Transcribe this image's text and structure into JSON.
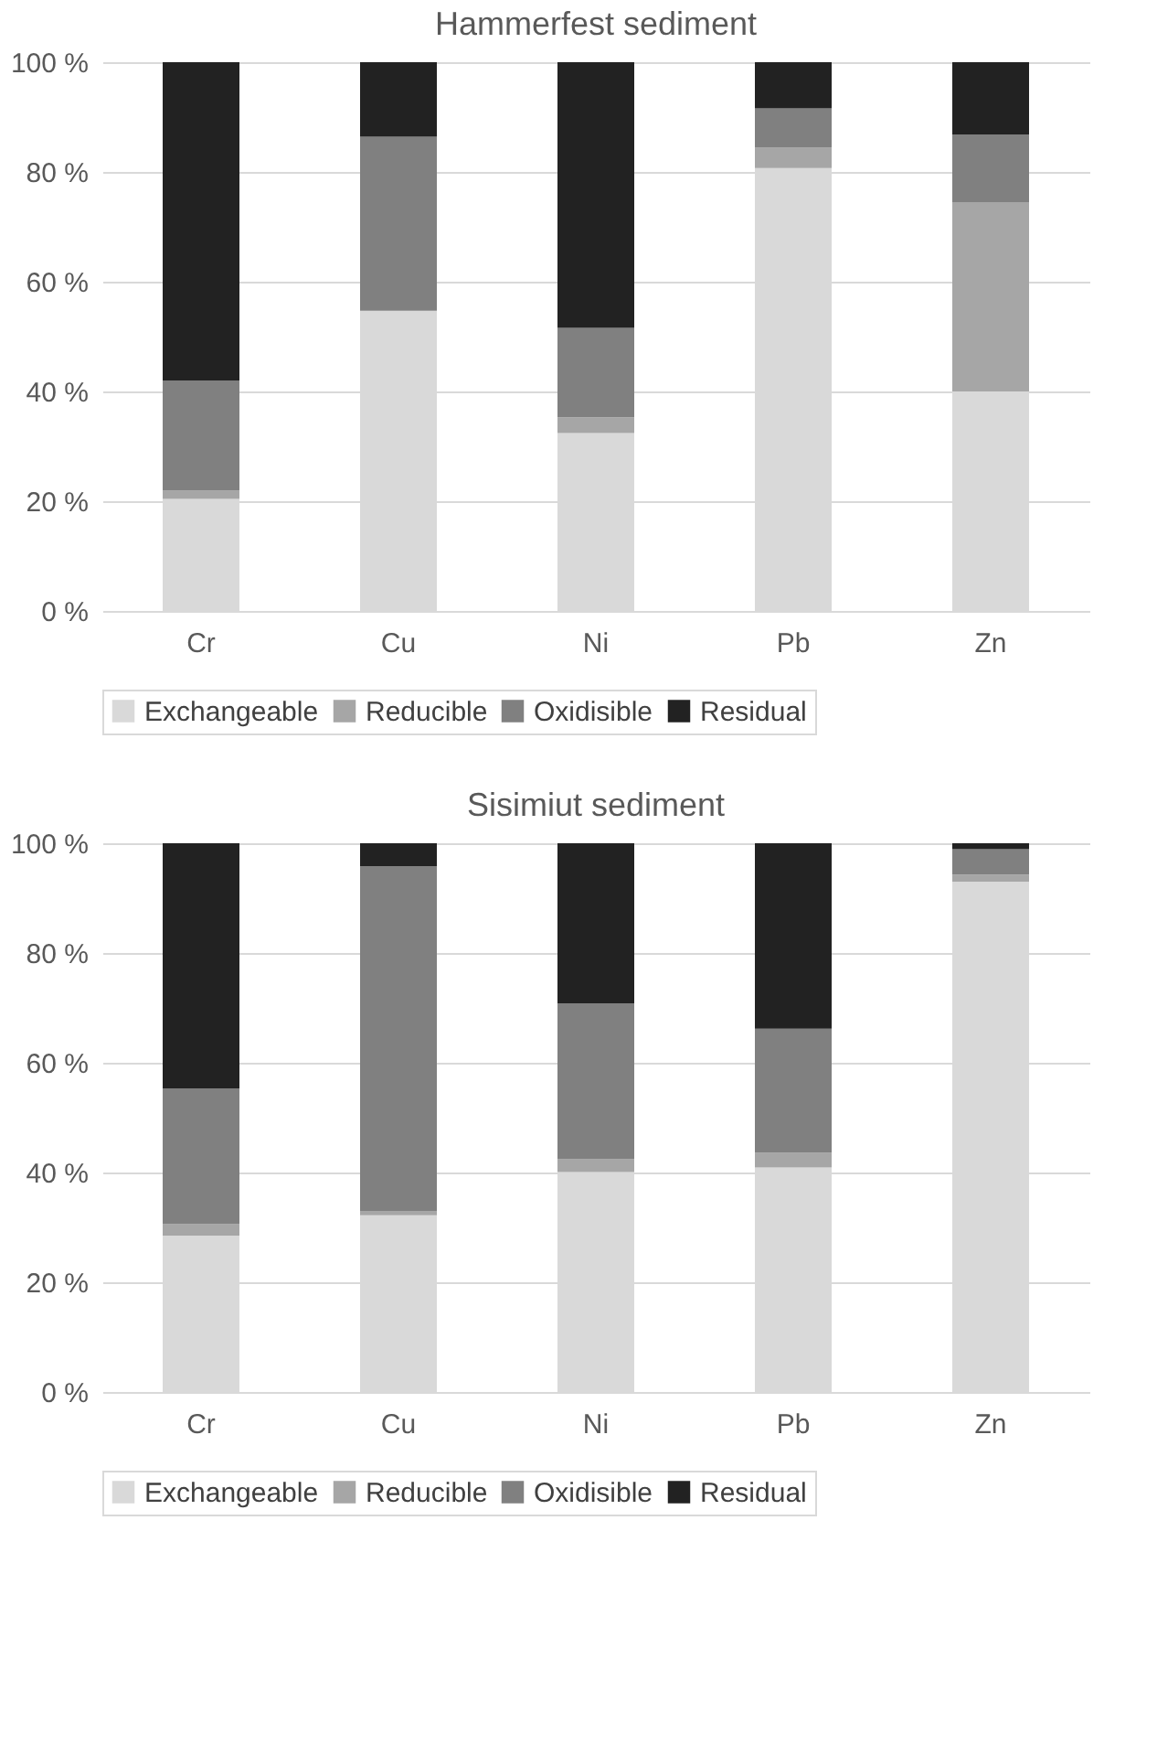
{
  "chart_data": [
    {
      "type": "bar",
      "title": "Hammerfest sediment",
      "categories": [
        "Cr",
        "Cu",
        "Ni",
        "Pb",
        "Zn"
      ],
      "stacked": true,
      "series": [
        {
          "name": "Exchangeable",
          "color": "#d9d9d9",
          "values": [
            20.4,
            54.7,
            32.4,
            80.7,
            40.0
          ]
        },
        {
          "name": "Reducible",
          "color": "#a6a6a6",
          "values": [
            1.5,
            0,
            2.9,
            3.7,
            34.5
          ]
        },
        {
          "name": "Oxidisible",
          "color": "#808080",
          "values": [
            20.1,
            31.7,
            16.3,
            7.2,
            12.3
          ]
        },
        {
          "name": "Residual",
          "color": "#222222",
          "values": [
            58.0,
            13.6,
            48.4,
            8.4,
            13.2
          ]
        }
      ],
      "ylim": [
        0,
        100
      ],
      "yticks": [
        {
          "value": 0,
          "label": "0 %"
        },
        {
          "value": 20,
          "label": "20 %"
        },
        {
          "value": 40,
          "label": "40 %"
        },
        {
          "value": 60,
          "label": "60 %"
        },
        {
          "value": 80,
          "label": "80 %"
        },
        {
          "value": 100,
          "label": "100 %"
        }
      ],
      "grid": "y",
      "legend": "bottom"
    },
    {
      "type": "bar",
      "title": "Sisimiut sediment",
      "categories": [
        "Cr",
        "Cu",
        "Ni",
        "Pb",
        "Zn"
      ],
      "stacked": true,
      "series": [
        {
          "name": "Exchangeable",
          "color": "#d9d9d9",
          "values": [
            28.5,
            32.2,
            40.1,
            40.9,
            93.0
          ]
        },
        {
          "name": "Reducible",
          "color": "#a6a6a6",
          "values": [
            2.1,
            0.8,
            2.3,
            2.7,
            1.3
          ]
        },
        {
          "name": "Oxidisible",
          "color": "#808080",
          "values": [
            24.7,
            62.8,
            28.4,
            22.6,
            4.6
          ]
        },
        {
          "name": "Residual",
          "color": "#222222",
          "values": [
            44.7,
            4.2,
            29.2,
            33.8,
            1.1
          ]
        }
      ],
      "ylim": [
        0,
        100
      ],
      "yticks": [
        {
          "value": 0,
          "label": "0 %"
        },
        {
          "value": 20,
          "label": "20 %"
        },
        {
          "value": 40,
          "label": "40 %"
        },
        {
          "value": 60,
          "label": "60 %"
        },
        {
          "value": 80,
          "label": "80 %"
        },
        {
          "value": 100,
          "label": "100 %"
        }
      ],
      "grid": "y",
      "legend": "bottom"
    }
  ]
}
